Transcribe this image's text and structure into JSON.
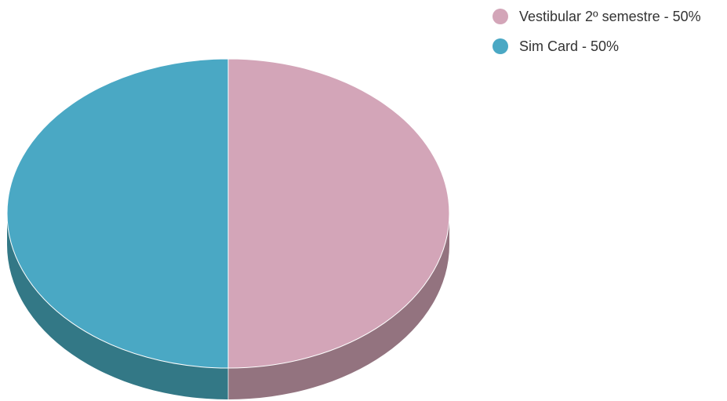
{
  "chart_data": {
    "type": "pie",
    "style": "3d",
    "title": "",
    "slices": [
      {
        "label": "Vestibular 2º semestre",
        "value": 50,
        "legend_text": "Vestibular 2º semestre - 50%",
        "color": "#d3a5b8",
        "side_color": "#93737f"
      },
      {
        "label": "Sim Card",
        "value": 50,
        "legend_text": "Sim Card - 50%",
        "color": "#4aa8c4",
        "side_color": "#337886"
      }
    ],
    "legend_position": "top-right"
  }
}
